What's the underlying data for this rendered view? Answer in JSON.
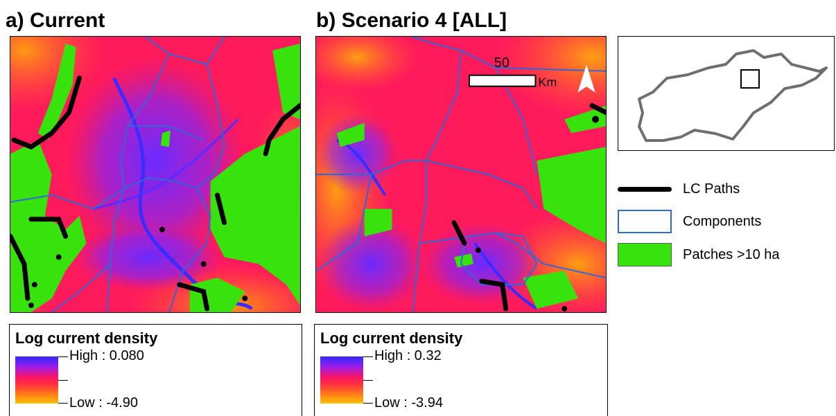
{
  "panels": {
    "a": {
      "title": "a) Current"
    },
    "b": {
      "title": "b) Scenario 4 [ALL]"
    }
  },
  "scalebar": {
    "value": "50",
    "unit": "Km"
  },
  "legend": {
    "lc_paths": "LC Paths",
    "components": "Components",
    "patches": "Patches >10 ha"
  },
  "density_legend": {
    "a": {
      "title": "Log current density",
      "high": "High : 0.080",
      "low": "Low : -4.90"
    },
    "b": {
      "title": "Log current density",
      "high": "High : 0.32",
      "low": "Low : -3.94"
    }
  },
  "colors": {
    "background_density": "#ff1a5c",
    "low_density": "#ffb020",
    "high_density": "#3a2cff",
    "patch_green": "#38e30d",
    "component_line": "#2f67d8",
    "lc_path": "#000000"
  }
}
